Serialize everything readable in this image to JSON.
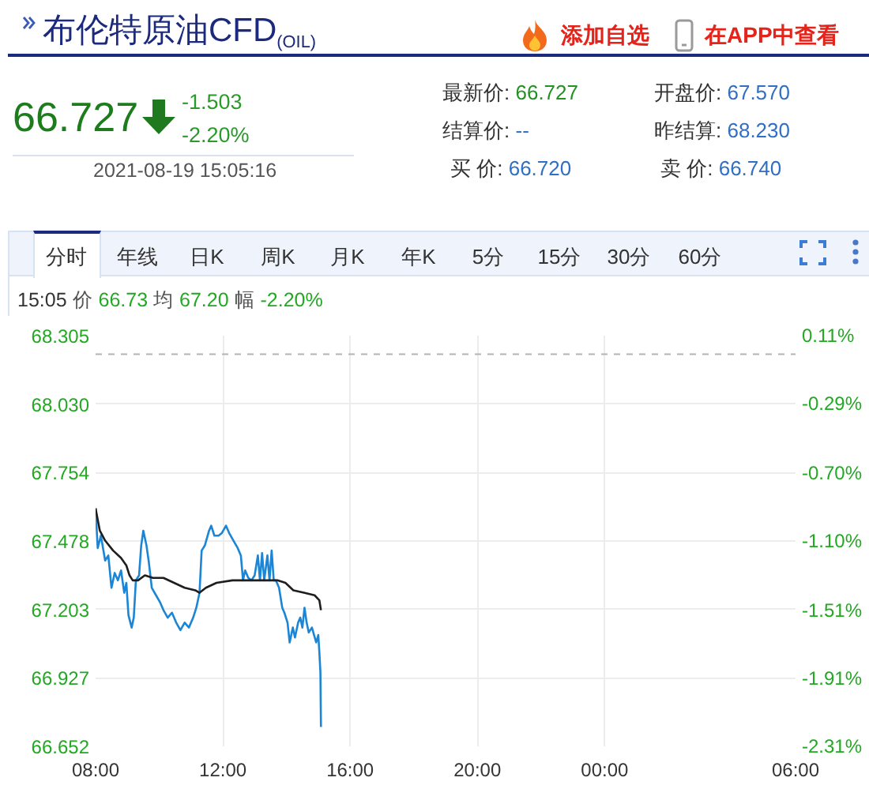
{
  "chart_data": {
    "type": "line",
    "title": "布伦特原油CFD$_{(OIL)}$",
    "annotations": [
      "添加自选",
      "在APP中查看",
      "66.727",
      "-1.503",
      "-2.20%",
      "2021-08-19 15:05:16",
      "最新价: 66.727",
      "开盘价: 67.570",
      "结算价: --",
      "昨结算: 68.230",
      "买 价: 66.720",
      "卖 价: 66.740",
      "分时",
      "年线",
      "日K",
      "周K",
      "月K",
      "年K",
      "5分",
      "15分",
      "30分",
      "60分",
      "15:05 价 66.73 均 67.20 幅 -2.20%"
    ],
    "series": [
      {
        "color": "#1b85d6",
        "x": [
          "2021-08-19T08:00",
          "2021-08-19T08:04",
          "2021-08-19T08:10",
          "2021-08-19T08:18",
          "2021-08-19T08:24",
          "2021-08-19T08:30",
          "2021-08-19T08:36",
          "2021-08-19T08:42",
          "2021-08-19T08:48",
          "2021-08-19T08:54",
          "2021-08-19T08:58",
          "2021-08-19T09:02",
          "2021-08-19T09:08",
          "2021-08-19T09:12",
          "2021-08-19T09:16",
          "2021-08-19T09:22",
          "2021-08-19T09:26",
          "2021-08-19T09:30",
          "2021-08-19T09:36",
          "2021-08-19T09:40",
          "2021-08-19T09:46",
          "2021-08-19T09:54",
          "2021-08-19T10:02",
          "2021-08-19T10:08",
          "2021-08-19T10:16",
          "2021-08-19T10:24",
          "2021-08-19T10:32",
          "2021-08-19T10:40",
          "2021-08-19T10:48",
          "2021-08-19T10:56",
          "2021-08-19T11:04",
          "2021-08-19T11:10",
          "2021-08-19T11:16",
          "2021-08-19T11:20",
          "2021-08-19T11:26",
          "2021-08-19T11:34",
          "2021-08-19T11:38",
          "2021-08-19T11:44",
          "2021-08-19T11:52",
          "2021-08-19T11:58",
          "2021-08-19T12:06",
          "2021-08-19T12:12",
          "2021-08-19T12:20",
          "2021-08-19T12:28",
          "2021-08-19T12:34",
          "2021-08-19T12:38",
          "2021-08-19T12:42",
          "2021-08-19T12:48",
          "2021-08-19T12:54",
          "2021-08-19T13:00",
          "2021-08-19T13:06",
          "2021-08-19T13:10",
          "2021-08-19T13:14",
          "2021-08-19T13:18",
          "2021-08-19T13:24",
          "2021-08-19T13:28",
          "2021-08-19T13:32",
          "2021-08-19T13:36",
          "2021-08-19T13:40",
          "2021-08-19T13:46",
          "2021-08-19T13:52",
          "2021-08-19T13:56",
          "2021-08-19T14:02",
          "2021-08-19T14:06",
          "2021-08-19T14:12",
          "2021-08-19T14:16",
          "2021-08-19T14:22",
          "2021-08-19T14:26",
          "2021-08-19T14:30",
          "2021-08-19T14:34",
          "2021-08-19T14:38",
          "2021-08-19T14:42",
          "2021-08-19T14:48",
          "2021-08-19T14:52",
          "2021-08-19T14:56",
          "2021-08-19T15:00",
          "2021-08-19T15:02",
          "2021-08-19T15:04",
          "2021-08-19T15:05"
        ],
        "values": [
          67.61,
          67.45,
          67.5,
          67.4,
          67.42,
          67.29,
          67.35,
          67.32,
          67.36,
          67.27,
          67.31,
          67.18,
          67.13,
          67.17,
          67.32,
          67.34,
          67.46,
          67.52,
          67.46,
          67.4,
          67.29,
          67.26,
          67.23,
          67.2,
          67.17,
          67.19,
          67.15,
          67.12,
          67.15,
          67.13,
          67.17,
          67.21,
          67.27,
          67.44,
          67.46,
          67.52,
          67.54,
          67.5,
          67.5,
          67.51,
          67.54,
          67.51,
          67.48,
          67.45,
          67.42,
          67.32,
          67.36,
          67.33,
          67.32,
          67.34,
          67.42,
          67.32,
          67.43,
          67.32,
          67.42,
          67.32,
          67.44,
          67.32,
          67.32,
          67.29,
          67.21,
          67.19,
          67.15,
          67.07,
          67.13,
          67.09,
          67.15,
          67.17,
          67.13,
          67.21,
          67.15,
          67.11,
          67.13,
          67.1,
          67.07,
          67.1,
          67.03,
          66.95,
          66.73
        ]
      },
      {
        "color": "#1e1e1e",
        "x": [
          "2021-08-19T08:00",
          "2021-08-19T08:08",
          "2021-08-19T08:18",
          "2021-08-19T08:33",
          "2021-08-19T08:48",
          "2021-08-19T08:58",
          "2021-08-19T09:04",
          "2021-08-19T09:10",
          "2021-08-19T09:20",
          "2021-08-19T09:33",
          "2021-08-19T09:48",
          "2021-08-19T10:08",
          "2021-08-19T10:28",
          "2021-08-19T10:48",
          "2021-08-19T11:08",
          "2021-08-19T11:16",
          "2021-08-19T11:28",
          "2021-08-19T11:48",
          "2021-08-19T12:18",
          "2021-08-19T12:48",
          "2021-08-19T13:18",
          "2021-08-19T13:43",
          "2021-08-19T13:58",
          "2021-08-19T14:13",
          "2021-08-19T14:33",
          "2021-08-19T14:53",
          "2021-08-19T15:02",
          "2021-08-19T15:05"
        ],
        "values": [
          67.61,
          67.52,
          67.48,
          67.44,
          67.41,
          67.38,
          67.34,
          67.32,
          67.32,
          67.34,
          67.33,
          67.33,
          67.31,
          67.29,
          67.28,
          67.27,
          67.29,
          67.31,
          67.32,
          67.32,
          67.32,
          67.32,
          67.31,
          67.28,
          67.27,
          67.26,
          67.24,
          67.2
        ]
      }
    ],
    "xlim": [
      "2021-08-19T08:00",
      "2021-08-20T06:00"
    ],
    "xticks": [
      {
        "value": "2021-08-19T08:00",
        "label": "08:00"
      },
      {
        "value": "2021-08-19T12:00",
        "label": "12:00"
      },
      {
        "value": "2021-08-19T16:00",
        "label": "16:00"
      },
      {
        "value": "2021-08-19T20:00",
        "label": "20:00"
      },
      {
        "value": "2021-08-20T00:00",
        "label": "00:00"
      },
      {
        "value": "2021-08-20T06:00",
        "label": "06:00"
      }
    ],
    "ylim": [
      66.652,
      68.305
    ],
    "yticks": [
      66.652,
      66.927,
      67.203,
      67.478,
      67.754,
      {
        "value": 68.03,
        "label": "68.030"
      },
      68.305
    ],
    "y2lim": [
      -2.31,
      0.11
    ],
    "y2ticks": [
      {
        "value": -2.31,
        "label": "-2.31%"
      },
      {
        "value": -1.91,
        "label": "-1.91%"
      },
      {
        "value": -1.51,
        "label": "-1.51%"
      },
      {
        "value": -1.1,
        "label": "-1.10%"
      },
      {
        "value": -0.7,
        "label": "-0.70%"
      },
      {
        "value": -0.29,
        "label": "-0.29%"
      },
      {
        "value": 0.11,
        "label": "0.11%"
      }
    ],
    "ref_lines": [
      {
        "axis": "y",
        "value": 68.23,
        "color": "#b3b3b3",
        "line_style": "dashed"
      }
    ],
    "grid": true,
    "line_style": "solid"
  }
}
